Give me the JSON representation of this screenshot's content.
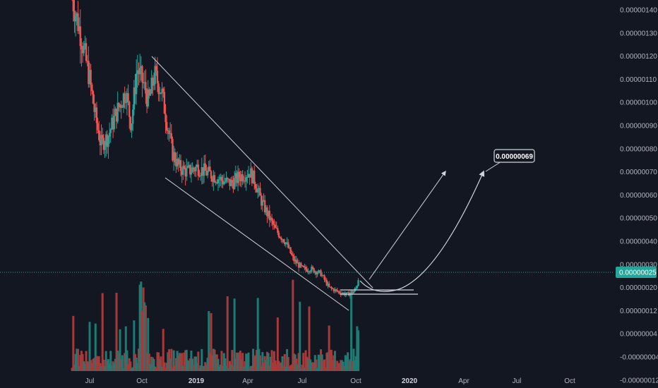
{
  "chart_data": {
    "type": "candlestick",
    "colors": {
      "background": "#131722",
      "up": "#26a69a",
      "down": "#ef5350",
      "volume_up": "#1e7a72",
      "volume_down": "#a63a3a",
      "grid": "#1e2230",
      "axis_text": "#b2b5be",
      "current_price": "#26a69a",
      "drawing": "#d1d4dc"
    },
    "y_axis": {
      "ticks": [
        "0.00000140",
        "0.00000130",
        "0.00000120",
        "0.00000110",
        "0.00000100",
        "0.00000090",
        "0.00000080",
        "0.00000070",
        "0.00000060",
        "0.00000050",
        "0.00000040",
        "0.00000030",
        "0.00000020",
        "0.00000012",
        "0.00000004",
        "-0.00000004",
        "-0.00000012"
      ],
      "current_price": "0.00000025"
    },
    "x_axis": {
      "ticks": [
        {
          "label": "Jul",
          "bold": false
        },
        {
          "label": "Oct",
          "bold": false
        },
        {
          "label": "2019",
          "bold": true
        },
        {
          "label": "Apr",
          "bold": false
        },
        {
          "label": "Jul",
          "bold": false
        },
        {
          "label": "Oct",
          "bold": false
        },
        {
          "label": "2020",
          "bold": true
        },
        {
          "label": "Apr",
          "bold": false
        },
        {
          "label": "Jul",
          "bold": false
        },
        {
          "label": "Oct",
          "bold": false
        }
      ]
    },
    "price_path": [
      [
        "2018-06-01",
        1.45
      ],
      [
        "2018-06-15",
        1.3
      ],
      [
        "2018-07-01",
        1.1
      ],
      [
        "2018-07-10",
        0.95
      ],
      [
        "2018-07-20",
        0.82
      ],
      [
        "2018-08-01",
        0.85
      ],
      [
        "2018-08-15",
        0.95
      ],
      [
        "2018-09-01",
        1.05
      ],
      [
        "2018-09-10",
        0.9
      ],
      [
        "2018-09-20",
        1.15
      ],
      [
        "2018-10-01",
        1.08
      ],
      [
        "2018-10-10",
        1.0
      ],
      [
        "2018-10-20",
        1.12
      ],
      [
        "2018-11-01",
        1.05
      ],
      [
        "2018-11-10",
        0.92
      ],
      [
        "2018-11-20",
        0.78
      ],
      [
        "2018-12-01",
        0.72
      ],
      [
        "2018-12-15",
        0.7
      ],
      [
        "2019-01-01",
        0.72
      ],
      [
        "2019-01-15",
        0.7
      ],
      [
        "2019-02-01",
        0.68
      ],
      [
        "2019-02-15",
        0.66
      ],
      [
        "2019-03-01",
        0.65
      ],
      [
        "2019-03-15",
        0.68
      ],
      [
        "2019-04-01",
        0.7
      ],
      [
        "2019-04-10",
        0.66
      ],
      [
        "2019-04-20",
        0.58
      ],
      [
        "2019-05-01",
        0.52
      ],
      [
        "2019-05-15",
        0.45
      ],
      [
        "2019-06-01",
        0.4
      ],
      [
        "2019-06-15",
        0.32
      ],
      [
        "2019-07-01",
        0.28
      ],
      [
        "2019-07-15",
        0.28
      ],
      [
        "2019-08-01",
        0.26
      ],
      [
        "2019-08-15",
        0.2
      ],
      [
        "2019-09-01",
        0.18
      ],
      [
        "2019-09-15",
        0.17
      ],
      [
        "2019-09-25",
        0.18
      ],
      [
        "2019-10-01",
        0.2
      ],
      [
        "2019-10-05",
        0.25
      ]
    ],
    "annotations": {
      "target_label": "0.00000069"
    }
  }
}
